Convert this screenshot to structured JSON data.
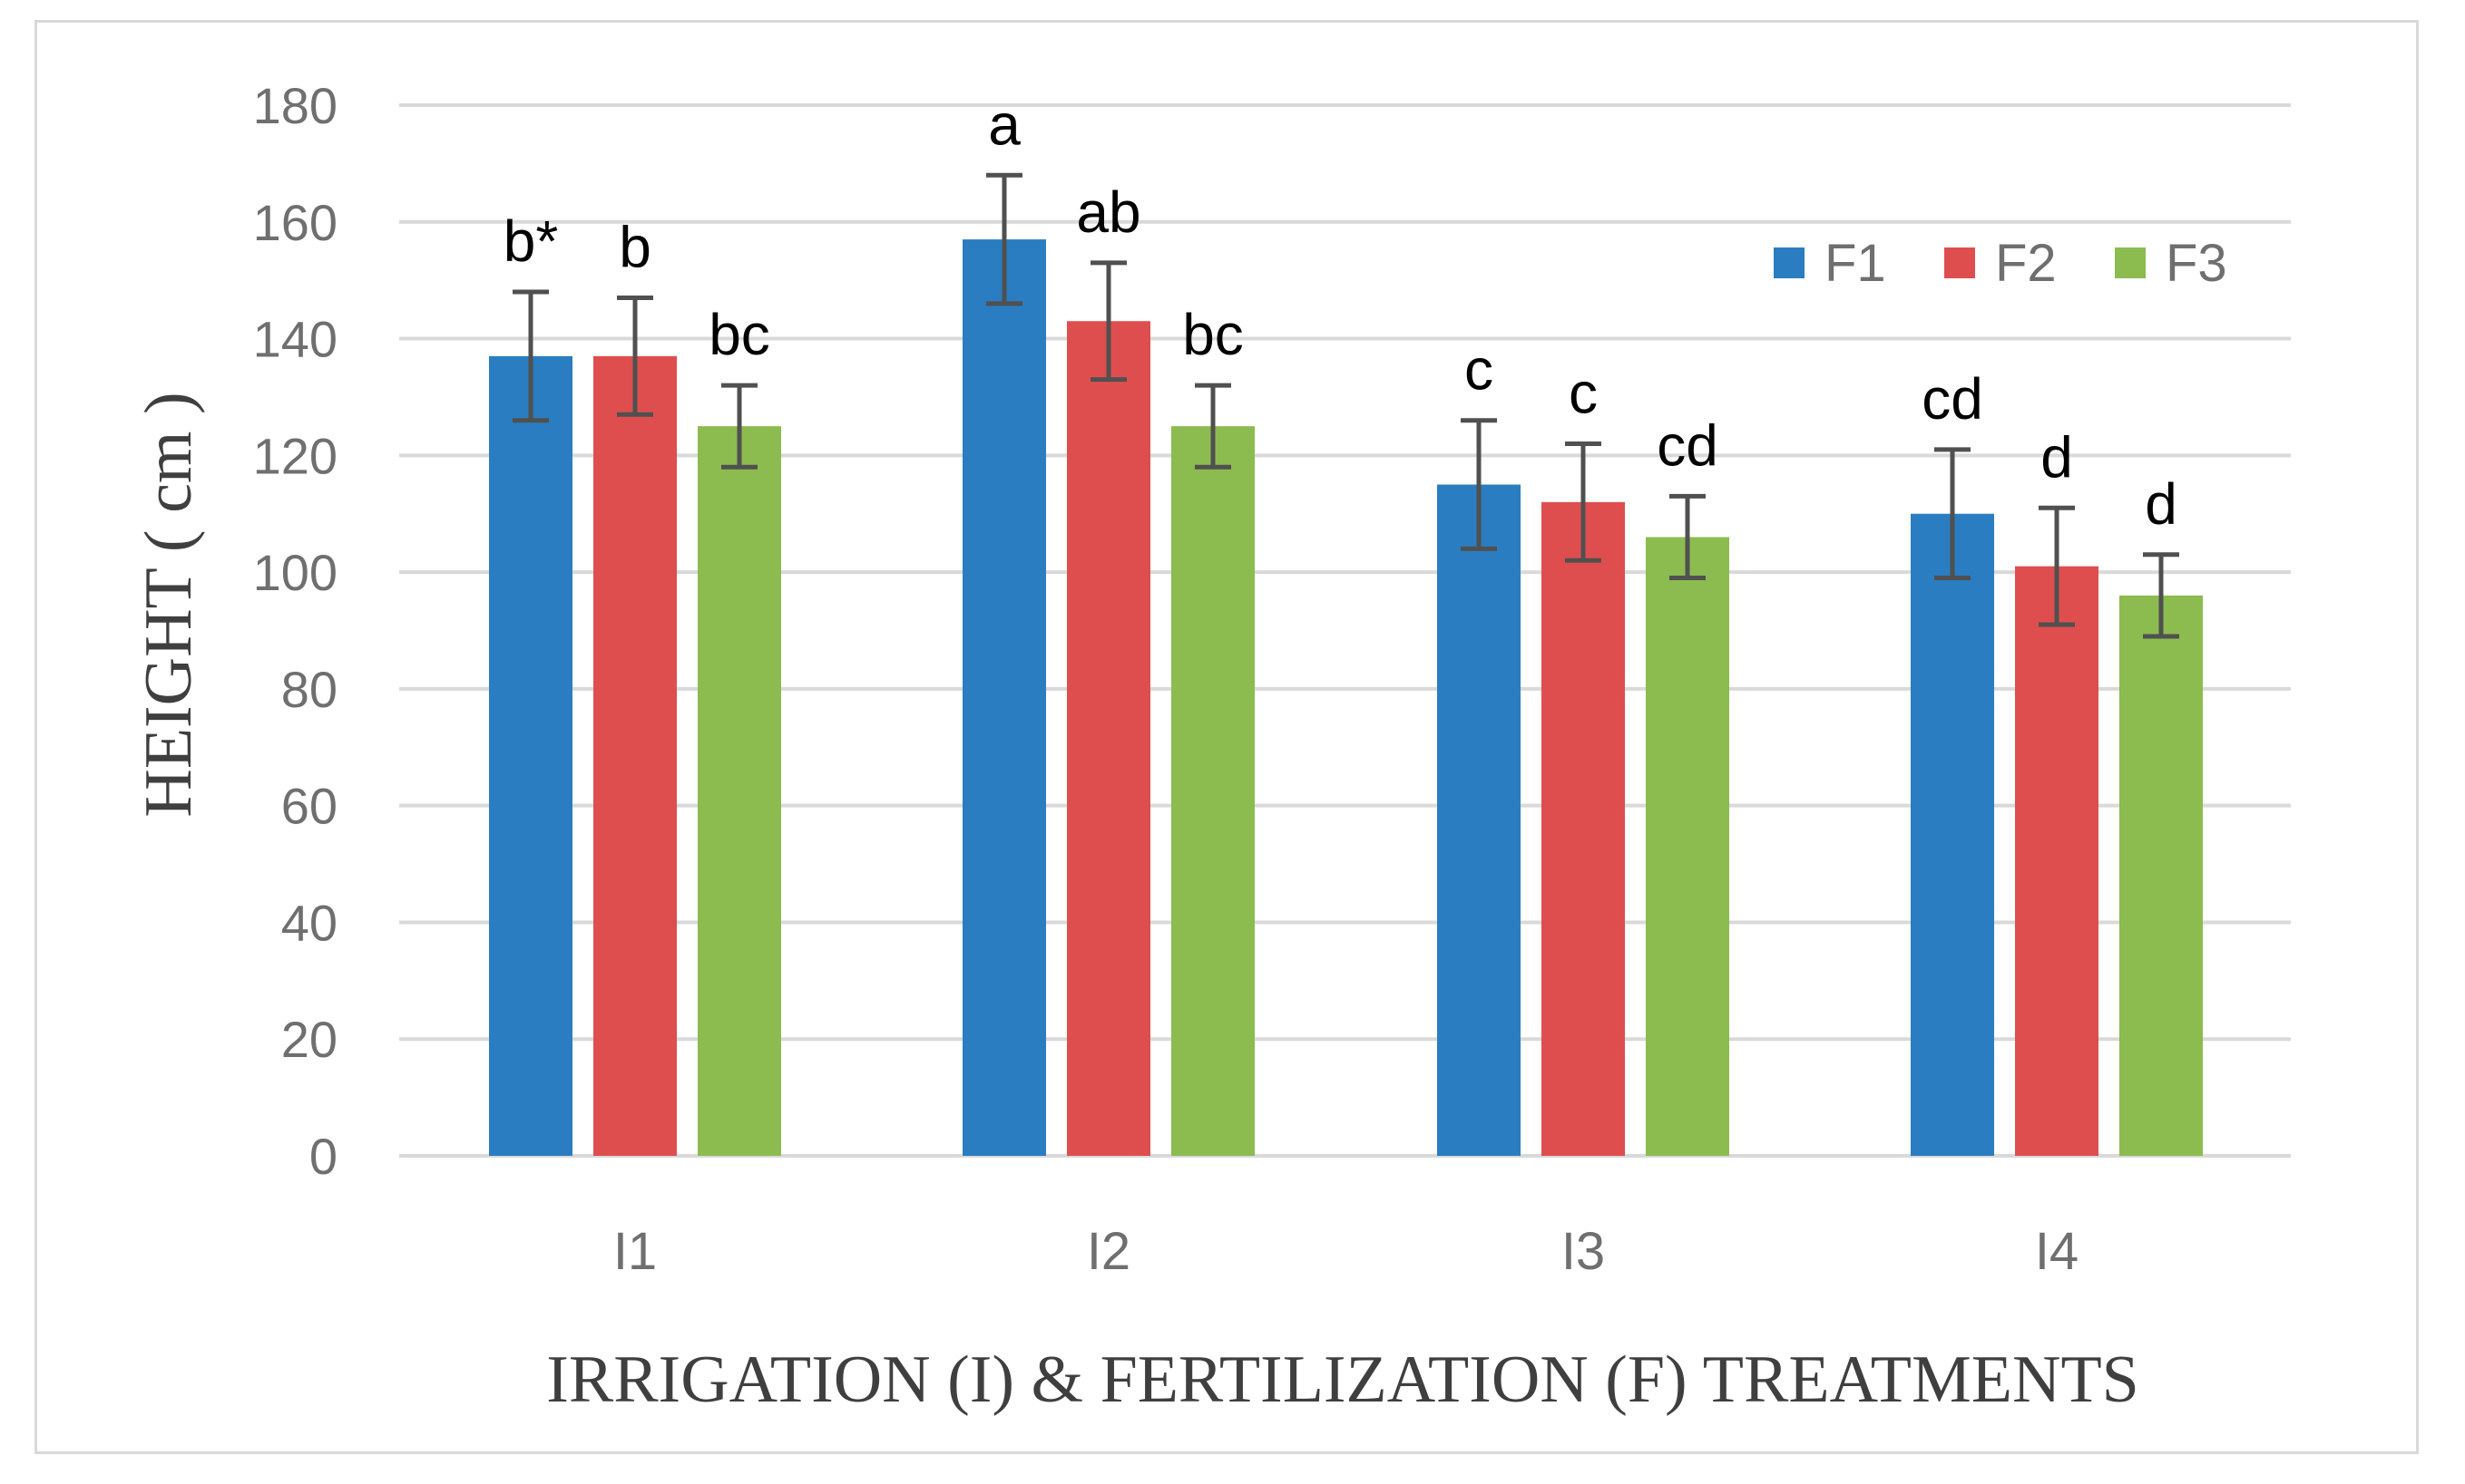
{
  "chart_data": {
    "type": "bar",
    "title": "",
    "xlabel": "IRRIGATION (I) & FERTILIZATION (F) TREATMENTS",
    "ylabel": "HEIGHT ( cm )",
    "ylim": [
      0,
      180
    ],
    "yticks": [
      0,
      20,
      40,
      60,
      80,
      100,
      120,
      140,
      160,
      180
    ],
    "grid": true,
    "legend_position": "top-right",
    "categories": [
      "I1",
      "I2",
      "I3",
      "I4"
    ],
    "series": [
      {
        "name": "F1",
        "color": "#2a7dc0",
        "values": [
          137,
          157,
          115,
          110
        ],
        "errors": [
          11,
          11,
          11,
          11
        ],
        "labels": [
          "b*",
          "a",
          "c",
          "cd"
        ]
      },
      {
        "name": "F2",
        "color": "#df4e4e",
        "values": [
          137,
          143,
          112,
          101
        ],
        "errors": [
          10,
          10,
          10,
          10
        ],
        "labels": [
          "b",
          "ab",
          "c",
          "d"
        ]
      },
      {
        "name": "F3",
        "color": "#8cbb4f",
        "values": [
          125,
          125,
          106,
          96
        ],
        "errors": [
          7,
          7,
          7,
          7
        ],
        "labels": [
          "bc",
          "bc",
          "cd",
          "d"
        ]
      }
    ]
  }
}
